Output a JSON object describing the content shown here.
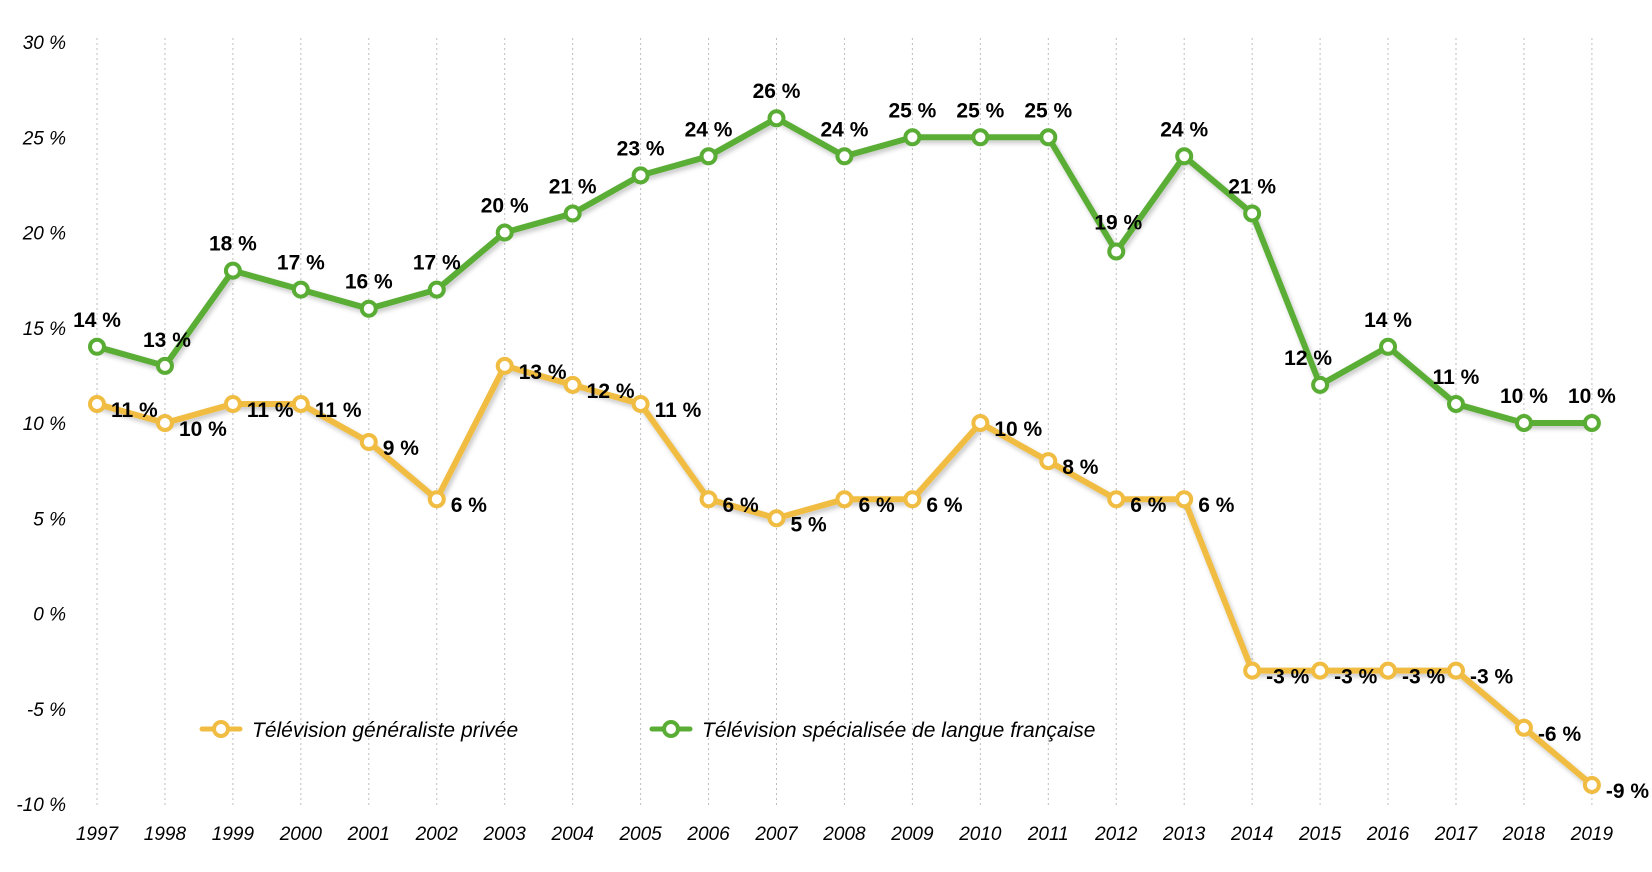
{
  "chart_data": {
    "type": "line",
    "title": "",
    "xlabel": "",
    "ylabel": "",
    "x": [
      "1997",
      "1998",
      "1999",
      "2000",
      "2001",
      "2002",
      "2003",
      "2004",
      "2005",
      "2006",
      "2007",
      "2008",
      "2009",
      "2010",
      "2011",
      "2012",
      "2013",
      "2014",
      "2015",
      "2016",
      "2017",
      "2018",
      "2019"
    ],
    "ylim": [
      -10,
      30
    ],
    "y_ticks": [
      {
        "value": 30,
        "label": "30 %"
      },
      {
        "value": 25,
        "label": "25 %"
      },
      {
        "value": 20,
        "label": "20 %"
      },
      {
        "value": 15,
        "label": "15 %"
      },
      {
        "value": 10,
        "label": "10 %"
      },
      {
        "value": 5,
        "label": "5 %"
      },
      {
        "value": 0,
        "label": "0 %"
      },
      {
        "value": -5,
        "label": "-5 %"
      },
      {
        "value": -10,
        "label": "-10 %"
      }
    ],
    "grid": "vertical dotted",
    "legend_position": "bottom-left",
    "series": [
      {
        "name": "Télévision généraliste privée",
        "color": "#f0bd42",
        "values": [
          11,
          10,
          11,
          11,
          9,
          6,
          13,
          12,
          11,
          6,
          5,
          6,
          6,
          10,
          8,
          6,
          6,
          -3,
          -3,
          -3,
          -3,
          -6,
          -9
        ],
        "labels": [
          "11 %",
          "10 %",
          "11 %",
          "11 %",
          "9 %",
          "6 %",
          "13 %",
          "12 %",
          "11 %",
          "6 %",
          "5 %",
          "6 %",
          "6 %",
          "10 %",
          "8 %",
          "6 %",
          "6 %",
          "-3 %",
          "-3 %",
          "-3 %",
          "-3 %",
          "-6 %",
          "-9 %"
        ]
      },
      {
        "name": "Télévision spécialisée de langue française",
        "color": "#5aad34",
        "values": [
          14,
          13,
          18,
          17,
          16,
          17,
          20,
          21,
          23,
          24,
          26,
          24,
          25,
          25,
          25,
          19,
          24,
          21,
          12,
          14,
          11,
          10,
          10
        ],
        "labels": [
          "14 %",
          "13 %",
          "18 %",
          "17 %",
          "16 %",
          "17 %",
          "20 %",
          "21 %",
          "23 %",
          "24 %",
          "26 %",
          "24 %",
          "25 %",
          "25 %",
          "25 %",
          "19 %",
          "24 %",
          "21 %",
          "12 %",
          "14 %",
          "11 %",
          "10 %",
          "10 %"
        ]
      }
    ]
  }
}
